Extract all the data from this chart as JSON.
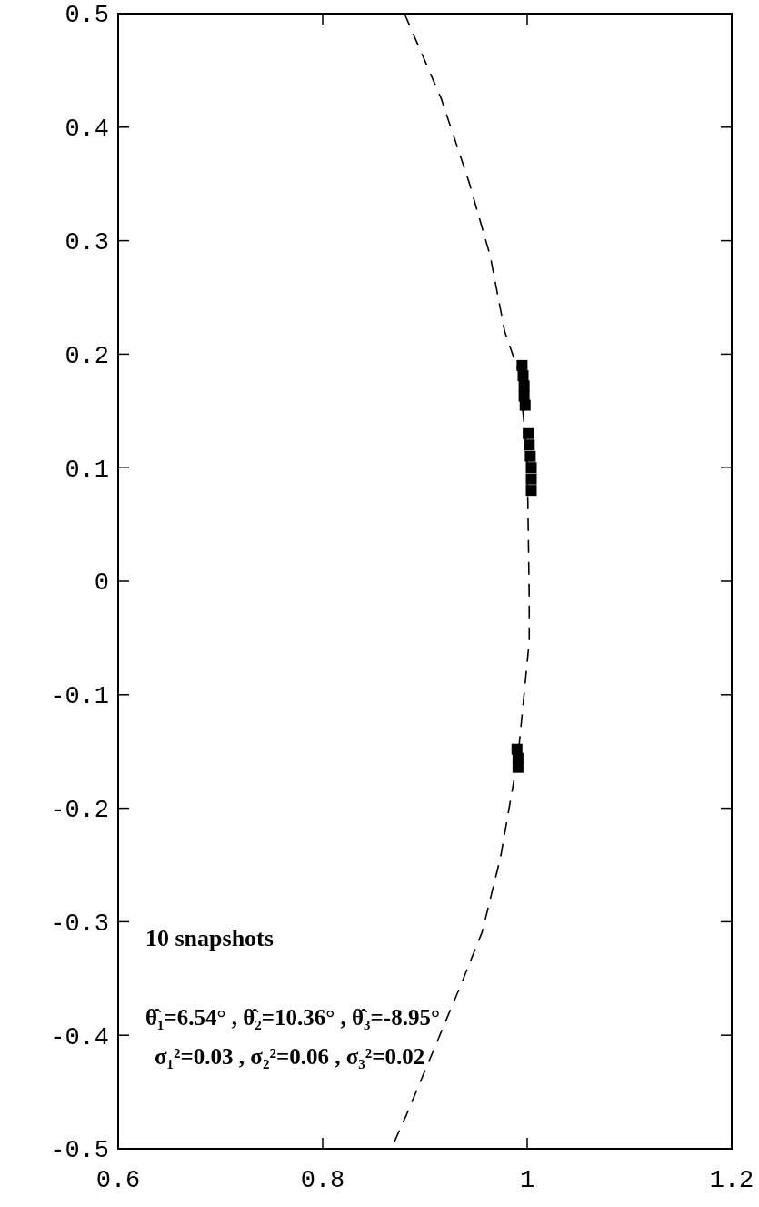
{
  "chart_data": {
    "type": "scatter",
    "xlim": [
      0.6,
      1.2
    ],
    "ylim": [
      -0.5,
      0.5
    ],
    "xticks": [
      {
        "value": 0.6,
        "label": "0.6"
      },
      {
        "value": 0.8,
        "label": "0.8"
      },
      {
        "value": 1,
        "label": "1"
      },
      {
        "value": 1.2,
        "label": "1.2"
      }
    ],
    "yticks": [
      {
        "value": -0.5,
        "label": "-0.5"
      },
      {
        "value": -0.4,
        "label": "-0.4"
      },
      {
        "value": -0.3,
        "label": "-0.3"
      },
      {
        "value": -0.2,
        "label": "-0.2"
      },
      {
        "value": -0.1,
        "label": "-0.1"
      },
      {
        "value": 0,
        "label": "0"
      },
      {
        "value": 0.1,
        "label": "0.1"
      },
      {
        "value": 0.2,
        "label": "0.2"
      },
      {
        "value": 0.3,
        "label": "0.3"
      },
      {
        "value": 0.4,
        "label": "0.4"
      },
      {
        "value": 0.5,
        "label": "0.5"
      }
    ],
    "grid": false,
    "series": [
      {
        "type": "line",
        "line_style": "dashed",
        "marker": "none",
        "color": "#000000",
        "x": [
          0.88,
          0.916,
          0.943,
          0.964,
          0.978,
          0.992,
          1.0,
          1.002,
          1.002,
          0.991,
          0.974,
          0.956,
          0.935,
          0.882,
          0.867
        ],
        "values": [
          0.5,
          0.425,
          0.352,
          0.286,
          0.22,
          0.184,
          0.111,
          -0.015,
          -0.053,
          -0.155,
          -0.243,
          -0.309,
          -0.356,
          -0.47,
          -0.5
        ]
      },
      {
        "marker": "square",
        "color": "#000000",
        "x": [
          0.995,
          0.996,
          0.997,
          0.997,
          0.998
        ],
        "values": [
          0.19,
          0.181,
          0.172,
          0.163,
          0.155
        ]
      },
      {
        "marker": "square",
        "color": "#000000",
        "x": [
          1.001,
          1.002,
          1.003,
          1.004,
          1.004,
          1.004
        ],
        "values": [
          0.13,
          0.12,
          0.11,
          0.1,
          0.09,
          0.08
        ]
      },
      {
        "marker": "square",
        "color": "#000000",
        "x": [
          0.99,
          0.991,
          0.991
        ],
        "values": [
          -0.148,
          -0.156,
          -0.164
        ]
      }
    ],
    "annotations": [
      "10 snapshots",
      "θ̂₁=6.54° , θ̂₂=10.36° , θ̂₃=-8.95°",
      "σ₁²=0.03 , σ₂²=0.06 , σ₃²=0.02"
    ]
  }
}
